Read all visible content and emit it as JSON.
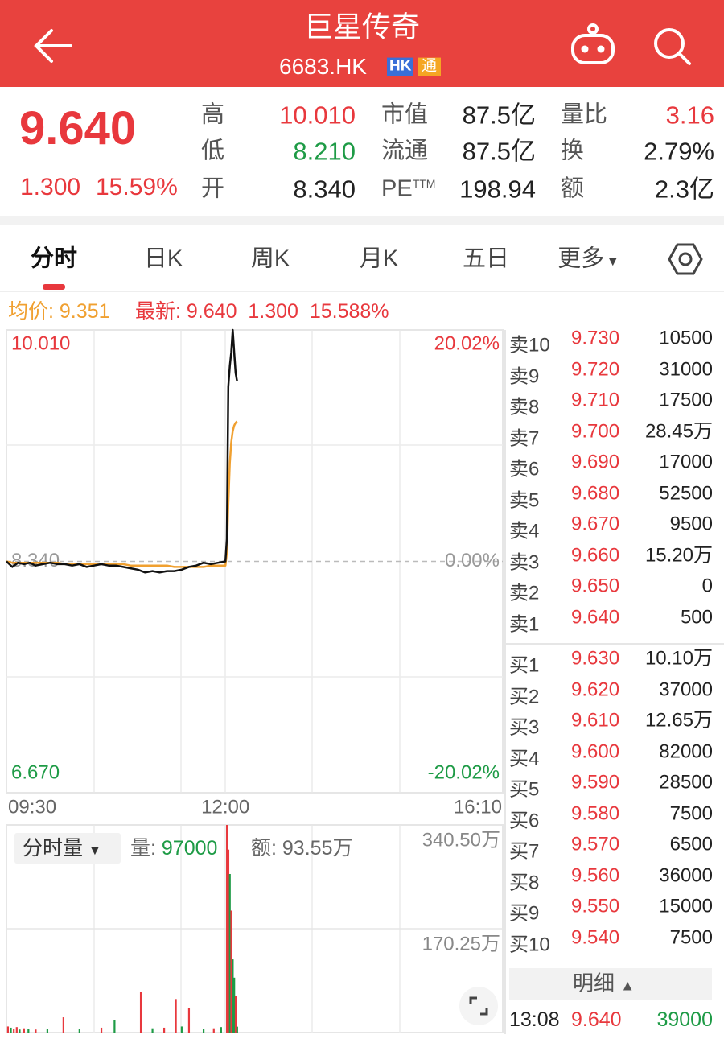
{
  "header": {
    "title": "巨星传奇",
    "code": "6683.HK",
    "badges": [
      "HK",
      "通"
    ]
  },
  "quote": {
    "price": "9.640",
    "change": "1.300",
    "change_pct": "15.59%",
    "stats": [
      {
        "label": "高",
        "value": "10.010",
        "color": "#e8383d"
      },
      {
        "label": "市值",
        "value": "87.5亿"
      },
      {
        "label": "量比",
        "value": "3.16",
        "color": "#e8383d"
      },
      {
        "label": "低",
        "value": "8.210",
        "color": "#1e9b46"
      },
      {
        "label": "流通",
        "value": "87.5亿"
      },
      {
        "label": "换",
        "value": "2.79%"
      },
      {
        "label": "开",
        "value": "8.340"
      },
      {
        "label": "PE",
        "sup": "TTM",
        "value": "198.94"
      },
      {
        "label": "额",
        "value": "2.3亿"
      }
    ]
  },
  "tabs": [
    "分时",
    "日K",
    "周K",
    "月K",
    "五日",
    "更多"
  ],
  "info_bar": {
    "avg_label": "均价:",
    "avg": "9.351",
    "last_label": "最新:",
    "last": "9.640",
    "change": "1.300",
    "change_pct": "15.588%"
  },
  "chart_data": [
    {
      "type": "line",
      "xlim": [
        0,
        340
      ],
      "xticks": [
        {
          "value": 0,
          "label": "09:30"
        },
        {
          "value": 150,
          "label": "12:00"
        },
        {
          "value": 340,
          "label": "16:10"
        }
      ],
      "ylim": [
        6.67,
        10.01
      ],
      "yticks": [
        {
          "value": 10.01,
          "label": "10.010"
        },
        {
          "value": 8.34,
          "label": "8.340"
        },
        {
          "value": 6.67,
          "label": "6.670"
        }
      ],
      "ytick_colors": [
        "#e8383d",
        "#999999",
        "#1e9b46"
      ],
      "y2lim": [
        -20.02,
        20.02
      ],
      "y2ticks": [
        {
          "value": 20.02,
          "label": "20.02%"
        },
        {
          "value": 0,
          "label": "0.00%"
        },
        {
          "value": -20.02,
          "label": "-20.02%"
        }
      ],
      "x": [
        0,
        4,
        8,
        12,
        16,
        20,
        25,
        30,
        35,
        40,
        45,
        50,
        55,
        60,
        65,
        70,
        75,
        80,
        85,
        90,
        95,
        100,
        105,
        110,
        115,
        120,
        125,
        130,
        135,
        140,
        145,
        150,
        151,
        152,
        153,
        154,
        155,
        156,
        157,
        158
      ],
      "series": [
        {
          "color": "#111111",
          "values": [
            8.34,
            8.3,
            8.33,
            8.32,
            8.33,
            8.31,
            8.32,
            8.33,
            8.32,
            8.32,
            8.31,
            8.32,
            8.3,
            8.31,
            8.32,
            8.31,
            8.31,
            8.3,
            8.29,
            8.28,
            8.26,
            8.27,
            8.26,
            8.27,
            8.27,
            8.28,
            8.3,
            8.31,
            8.33,
            8.32,
            8.33,
            8.34,
            8.5,
            9.6,
            9.75,
            9.85,
            10.01,
            9.85,
            9.7,
            9.64
          ]
        },
        {
          "color": "#f0a030",
          "values": [
            8.34,
            8.33,
            8.33,
            8.33,
            8.33,
            8.33,
            8.33,
            8.33,
            8.33,
            8.32,
            8.32,
            8.32,
            8.32,
            8.32,
            8.32,
            8.32,
            8.32,
            8.32,
            8.31,
            8.31,
            8.31,
            8.31,
            8.31,
            8.31,
            8.3,
            8.3,
            8.3,
            8.3,
            8.3,
            8.31,
            8.31,
            8.31,
            8.4,
            8.75,
            9.05,
            9.2,
            9.28,
            9.32,
            9.34,
            9.351
          ]
        }
      ]
    },
    {
      "type": "bar",
      "xlim": [
        0,
        340
      ],
      "ylim": [
        0,
        340.5
      ],
      "yticks": [
        {
          "value": 170.25,
          "label": "170.25万"
        },
        {
          "value": 340.5,
          "label": "340.50万"
        }
      ],
      "x": [
        1,
        3,
        5,
        7,
        9,
        12,
        15,
        20,
        28,
        39,
        50,
        65,
        74,
        92,
        100,
        108,
        116,
        120,
        125,
        135,
        142,
        147,
        151,
        152,
        153,
        154,
        155,
        156,
        157,
        158
      ],
      "values": [
        10,
        8,
        6,
        9,
        5,
        7,
        6,
        5,
        6,
        25,
        6,
        8,
        20,
        66,
        7,
        8,
        55,
        10,
        40,
        6,
        7,
        9,
        340.5,
        300,
        260,
        200,
        120,
        90,
        60,
        9.7
      ],
      "colors": [
        "#e8383d",
        "#1e9b46",
        "#e8383d",
        "#e8383d",
        "#1e9b46",
        "#e8383d",
        "#1e9b46",
        "#e8383d",
        "#1e9b46",
        "#e8383d",
        "#1e9b46",
        "#e8383d",
        "#1e9b46",
        "#e8383d",
        "#1e9b46",
        "#e8383d",
        "#e8383d",
        "#1e9b46",
        "#e8383d",
        "#1e9b46",
        "#e8383d",
        "#1e9b46",
        "#e8383d",
        "#e8383d",
        "#1e9b46",
        "#e8383d",
        "#1e9b46",
        "#1e9b46",
        "#e8383d",
        "#1e9b46"
      ]
    }
  ],
  "volume_bar": {
    "selector": "分时量",
    "volume_label": "量:",
    "volume": "97000",
    "amount_label": "额:",
    "amount": "93.55万"
  },
  "order_book": {
    "asks": [
      [
        "卖10",
        "9.730",
        "10500"
      ],
      [
        "卖9",
        "9.720",
        "31000"
      ],
      [
        "卖8",
        "9.710",
        "17500"
      ],
      [
        "卖7",
        "9.700",
        "28.45万"
      ],
      [
        "卖6",
        "9.690",
        "17000"
      ],
      [
        "卖5",
        "9.680",
        "52500"
      ],
      [
        "卖4",
        "9.670",
        "9500"
      ],
      [
        "卖3",
        "9.660",
        "15.20万"
      ],
      [
        "卖2",
        "9.650",
        "0"
      ],
      [
        "卖1",
        "9.640",
        "500"
      ]
    ],
    "bids": [
      [
        "买1",
        "9.630",
        "10.10万"
      ],
      [
        "买2",
        "9.620",
        "37000"
      ],
      [
        "买3",
        "9.610",
        "12.65万"
      ],
      [
        "买4",
        "9.600",
        "82000"
      ],
      [
        "买5",
        "9.590",
        "28500"
      ],
      [
        "买6",
        "9.580",
        "7500"
      ],
      [
        "买7",
        "9.570",
        "6500"
      ],
      [
        "买8",
        "9.560",
        "36000"
      ],
      [
        "买9",
        "9.550",
        "15000"
      ],
      [
        "买10",
        "9.540",
        "7500"
      ]
    ]
  },
  "detail": {
    "button": "明细",
    "trades": [
      [
        "13:08",
        "9.640",
        "39000"
      ]
    ]
  }
}
